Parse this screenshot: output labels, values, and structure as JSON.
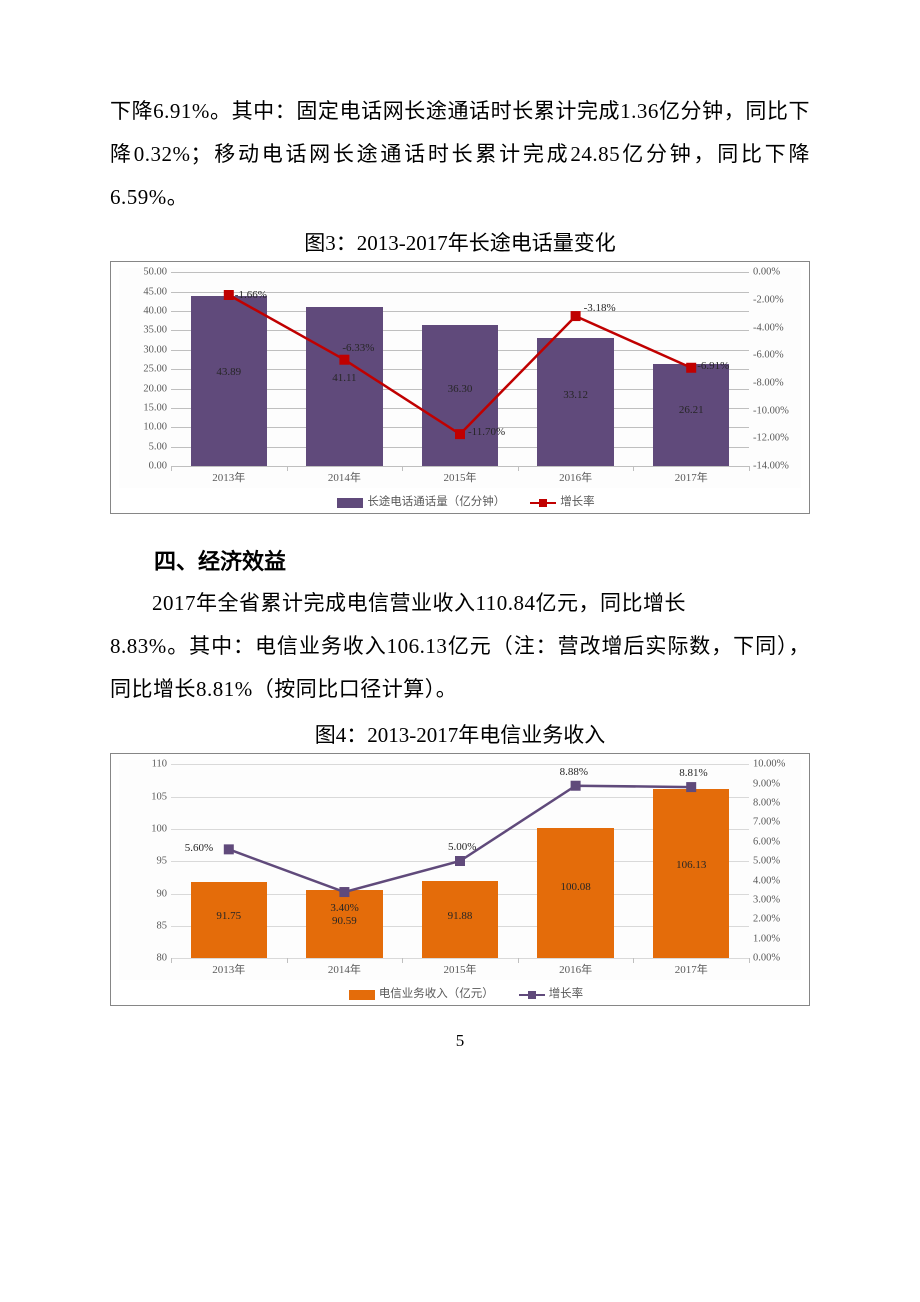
{
  "text": {
    "para1": "下降6.91%。其中：固定电话网长途通话时长累计完成1.36亿分钟，同比下降0.32%；移动电话网长途通话时长累计完成24.85亿分钟，同比下降6.59%。",
    "fig3_title": "图3：2013-2017年长途电话量变化",
    "section4": "四、经济效益",
    "para2_a": "2017年全省累计完成电信营业收入110.84亿元，同比增长",
    "para2_b": "8.83%。其中：电信业务收入106.13亿元（注：营改增后实际数，下同），同比增长8.81%（按同比口径计算）。",
    "fig4_title": "图4：2013-2017年电信业务收入",
    "page_number": "5"
  },
  "chart3": {
    "type": "bar+line",
    "categories": [
      "2013年",
      "2014年",
      "2015年",
      "2016年",
      "2017年"
    ],
    "bar_values": [
      43.89,
      41.11,
      36.3,
      33.12,
      26.21
    ],
    "bar_labels": [
      "43.89",
      "41.11",
      "36.30",
      "33.12",
      "26.21"
    ],
    "bar_color": "#604a7b",
    "line_values_pct": [
      -1.66,
      -6.33,
      -11.7,
      -3.18,
      -6.91
    ],
    "line_labels": [
      "-1.66%",
      "-6.33%",
      "-11.70%",
      "-3.18%",
      "-6.91%"
    ],
    "line_color": "#c00000",
    "marker_color": "#c00000",
    "left_axis": {
      "min": 0,
      "max": 50,
      "step": 5,
      "ticks": [
        "0.00",
        "5.00",
        "10.00",
        "15.00",
        "20.00",
        "25.00",
        "30.00",
        "35.00",
        "40.00",
        "45.00",
        "50.00"
      ]
    },
    "right_axis": {
      "min": -14,
      "max": 0,
      "step": 2,
      "ticks": [
        "-14.00%",
        "-12.00%",
        "-10.00%",
        "-8.00%",
        "-6.00%",
        "-4.00%",
        "-2.00%",
        "0.00%"
      ]
    },
    "grid_color": "#bfbfbf",
    "legend_bar": "长途电话通话量（亿分钟）",
    "legend_line": "增长率",
    "label_fontsize": 11,
    "tick_fontsize": 10.5,
    "background_color": "#ffffff"
  },
  "chart4": {
    "type": "bar+line",
    "categories": [
      "2013年",
      "2014年",
      "2015年",
      "2016年",
      "2017年"
    ],
    "bar_values": [
      91.75,
      90.59,
      91.88,
      100.08,
      106.13
    ],
    "bar_labels": [
      "91.75",
      "90.59",
      "91.88",
      "100.08",
      "106.13"
    ],
    "bar_color": "#e46c0a",
    "line_values_pct": [
      5.6,
      3.4,
      5.0,
      8.88,
      8.81
    ],
    "line_labels": [
      "5.60%",
      "3.40%",
      "5.00%",
      "8.88%",
      "8.81%"
    ],
    "line_color": "#604a7b",
    "marker_color": "#604a7b",
    "left_axis": {
      "min": 80,
      "max": 110,
      "step": 5,
      "ticks": [
        "80",
        "85",
        "90",
        "95",
        "100",
        "105",
        "110"
      ]
    },
    "right_axis": {
      "min": 0,
      "max": 10,
      "step": 1,
      "ticks": [
        "0.00%",
        "1.00%",
        "2.00%",
        "3.00%",
        "4.00%",
        "5.00%",
        "6.00%",
        "7.00%",
        "8.00%",
        "9.00%",
        "10.00%"
      ]
    },
    "grid_color": "#d9d9d9",
    "legend_bar": "电信业务收入（亿元）",
    "legend_line": "增长率",
    "label_fontsize": 11,
    "tick_fontsize": 10.5,
    "background_color": "#ffffff"
  }
}
